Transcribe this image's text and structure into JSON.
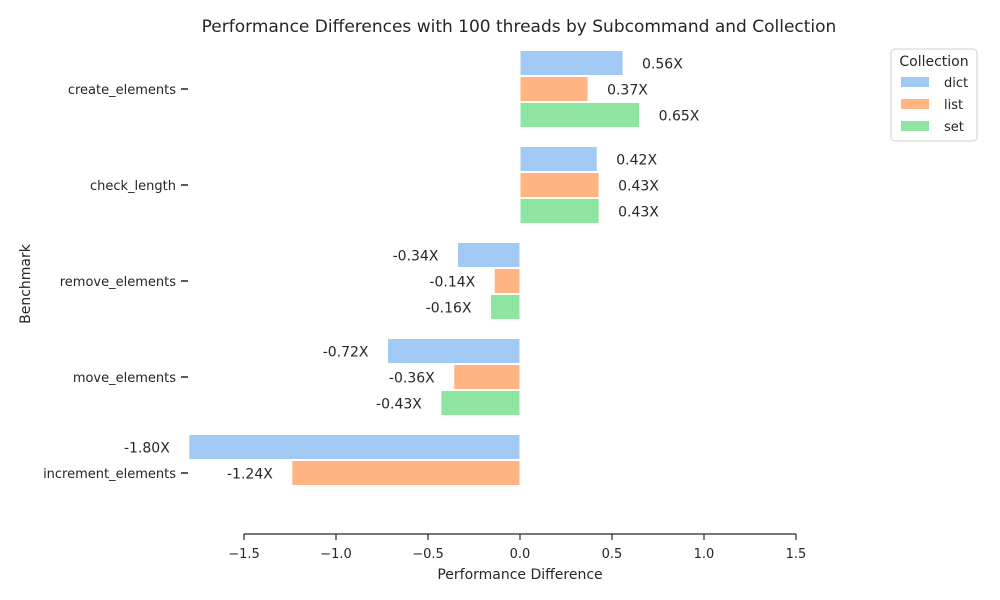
{
  "chart_data": {
    "type": "bar",
    "orientation": "horizontal",
    "title": "Performance Differences with 100 threads by Subcommand and Collection",
    "xlabel": "Performance Difference",
    "ylabel": "Benchmark",
    "xlim": [
      -1.8,
      1.5
    ],
    "xticks": [
      {
        "value": -1.5,
        "label": "−1.5"
      },
      {
        "value": -1.0,
        "label": "−1.0"
      },
      {
        "value": -0.5,
        "label": "−0.5"
      },
      {
        "value": 0.0,
        "label": "0.0"
      },
      {
        "value": 0.5,
        "label": "0.5"
      },
      {
        "value": 1.0,
        "label": "1.0"
      },
      {
        "value": 1.5,
        "label": "1.5"
      }
    ],
    "categories": [
      "create_elements",
      "check_length",
      "remove_elements",
      "move_elements",
      "increment_elements"
    ],
    "series": [
      {
        "name": "dict",
        "color": "#a1c9f4",
        "values": [
          0.56,
          0.42,
          -0.34,
          -0.72,
          -1.8
        ],
        "labels": [
          "0.56X",
          "0.42X",
          "-0.34X",
          "-0.72X",
          "-1.80X"
        ]
      },
      {
        "name": "list",
        "color": "#ffb482",
        "values": [
          0.37,
          0.43,
          -0.14,
          -0.36,
          -1.24
        ],
        "labels": [
          "0.37X",
          "0.43X",
          "-0.14X",
          "-0.36X",
          "-1.24X"
        ]
      },
      {
        "name": "set",
        "color": "#8de5a1",
        "values": [
          0.65,
          0.43,
          -0.16,
          -0.43,
          null
        ],
        "labels": [
          "0.65X",
          "0.43X",
          "-0.16X",
          "-0.43X",
          null
        ]
      }
    ],
    "legend": {
      "title": "Collection",
      "position": "top-right"
    },
    "grid": false
  }
}
